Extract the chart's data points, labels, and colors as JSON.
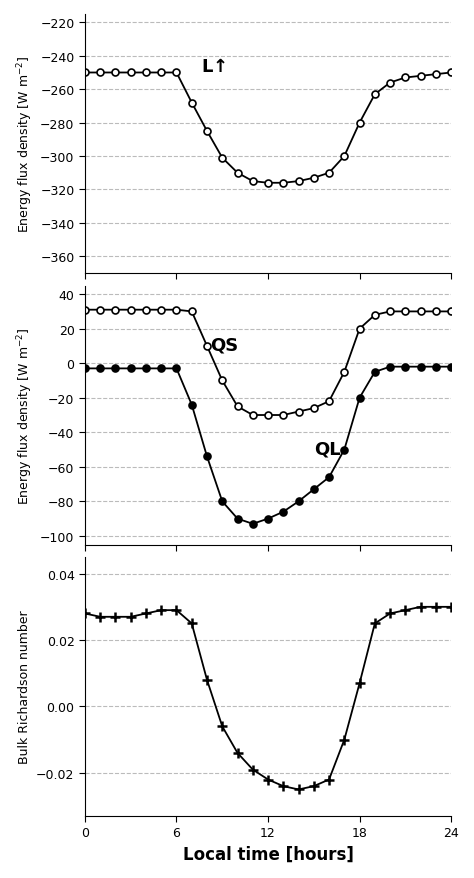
{
  "hours": [
    0,
    1,
    2,
    3,
    4,
    5,
    6,
    7,
    8,
    9,
    10,
    11,
    12,
    13,
    14,
    15,
    16,
    17,
    18,
    19,
    20,
    21,
    22,
    23,
    24
  ],
  "L_up": [
    -250,
    -250,
    -250,
    -250,
    -250,
    -250,
    -250,
    -268,
    -285,
    -301,
    -310,
    -315,
    -316,
    -316,
    -315,
    -313,
    -310,
    -300,
    -280,
    -263,
    -256,
    -253,
    -252,
    -251,
    -250
  ],
  "QS": [
    31,
    31,
    31,
    31,
    31,
    31,
    31,
    30,
    10,
    -10,
    -25,
    -30,
    -30,
    -30,
    -28,
    -26,
    -22,
    -5,
    20,
    28,
    30,
    30,
    30,
    30,
    30
  ],
  "QL": [
    -3,
    -3,
    -3,
    -3,
    -3,
    -3,
    -3,
    -24,
    -54,
    -80,
    -90,
    -93,
    -90,
    -86,
    -80,
    -73,
    -66,
    -50,
    -20,
    -5,
    -2,
    -2,
    -2,
    -2,
    -2
  ],
  "Ri": [
    0.028,
    0.027,
    0.027,
    0.027,
    0.028,
    0.029,
    0.029,
    0.025,
    0.008,
    -0.006,
    -0.014,
    -0.019,
    -0.022,
    -0.024,
    -0.025,
    -0.024,
    -0.022,
    -0.01,
    0.007,
    0.025,
    0.028,
    0.029,
    0.03,
    0.03,
    0.03
  ],
  "ylim1": [
    -370,
    -215
  ],
  "yticks1": [
    -360,
    -340,
    -320,
    -300,
    -280,
    -260,
    -240,
    -220
  ],
  "ylim2": [
    -105,
    45
  ],
  "yticks2": [
    -100,
    -80,
    -60,
    -40,
    -20,
    0,
    20,
    40
  ],
  "ylim3": [
    -0.033,
    0.045
  ],
  "yticks3": [
    -0.02,
    0.0,
    0.02,
    0.04
  ],
  "xlabel": "Local time [hours]",
  "ylabel1": "Energy flux density [W m$^{-2}$]",
  "ylabel2": "Energy flux density [W m$^{-2}$]",
  "ylabel3": "Bulk Richardson number",
  "xticks": [
    0,
    6,
    12,
    18,
    24
  ],
  "background_color": "#ffffff",
  "line_color": "#000000",
  "grid_color": "#bbbbbb"
}
